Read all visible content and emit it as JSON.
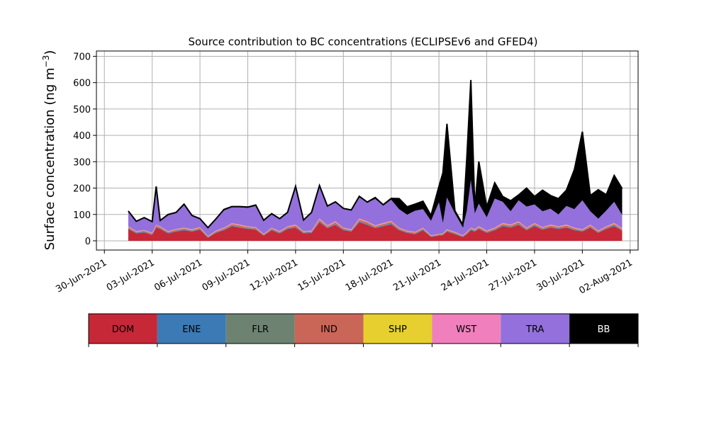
{
  "chart_data": {
    "type": "area",
    "stacked": true,
    "title": "Source contribution to BC concentrations (ECLIPSEv6 and GFED4)",
    "ylabel": "Surface concentration (ng m",
    "ylabel_superscript": "−3",
    "ylabel_close": ")",
    "xlabel": "",
    "ylim": [
      -35,
      720
    ],
    "xlim": [
      "2021-06-29T12:00",
      "2021-08-02T12:00"
    ],
    "grid": true,
    "x_ticks": [
      "30-Jun-2021",
      "03-Jul-2021",
      "06-Jul-2021",
      "09-Jul-2021",
      "12-Jul-2021",
      "15-Jul-2021",
      "18-Jul-2021",
      "21-Jul-2021",
      "24-Jul-2021",
      "27-Jul-2021",
      "30-Jul-2021",
      "02-Aug-2021"
    ],
    "y_ticks": [
      "0",
      "100",
      "200",
      "300",
      "400",
      "500",
      "600",
      "700"
    ],
    "legend_position": "bottom",
    "legend": [
      {
        "name": "DOM",
        "color": "#c62837",
        "text_color": "#000000"
      },
      {
        "name": "ENE",
        "color": "#3b7ab5",
        "text_color": "#000000"
      },
      {
        "name": "FLR",
        "color": "#6e8271",
        "text_color": "#000000"
      },
      {
        "name": "IND",
        "color": "#ca6657",
        "text_color": "#000000"
      },
      {
        "name": "SHP",
        "color": "#e6cf2f",
        "text_color": "#000000"
      },
      {
        "name": "WST",
        "color": "#f07fbd",
        "text_color": "#000000"
      },
      {
        "name": "TRA",
        "color": "#9370db",
        "text_color": "#000000"
      },
      {
        "name": "BB",
        "color": "#000000",
        "text_color": "#ffffff"
      }
    ],
    "x": [
      "2021-07-01T12:00",
      "2021-07-02T00:00",
      "2021-07-02T12:00",
      "2021-07-03T00:00",
      "2021-07-03T06:00",
      "2021-07-03T12:00",
      "2021-07-04T00:00",
      "2021-07-04T12:00",
      "2021-07-05T00:00",
      "2021-07-05T12:00",
      "2021-07-06T00:00",
      "2021-07-06T12:00",
      "2021-07-07T00:00",
      "2021-07-07T12:00",
      "2021-07-08T00:00",
      "2021-07-08T12:00",
      "2021-07-09T00:00",
      "2021-07-09T12:00",
      "2021-07-10T00:00",
      "2021-07-10T12:00",
      "2021-07-11T00:00",
      "2021-07-11T12:00",
      "2021-07-12T00:00",
      "2021-07-12T12:00",
      "2021-07-13T00:00",
      "2021-07-13T12:00",
      "2021-07-14T00:00",
      "2021-07-14T12:00",
      "2021-07-15T00:00",
      "2021-07-15T12:00",
      "2021-07-16T00:00",
      "2021-07-16T12:00",
      "2021-07-17T00:00",
      "2021-07-17T12:00",
      "2021-07-18T00:00",
      "2021-07-18T12:00",
      "2021-07-19T00:00",
      "2021-07-19T12:00",
      "2021-07-20T00:00",
      "2021-07-20T12:00",
      "2021-07-21T00:00",
      "2021-07-21T06:00",
      "2021-07-21T12:00",
      "2021-07-22T00:00",
      "2021-07-22T12:00",
      "2021-07-22T18:00",
      "2021-07-23T00:00",
      "2021-07-23T06:00",
      "2021-07-23T12:00",
      "2021-07-24T00:00",
      "2021-07-24T12:00",
      "2021-07-25T00:00",
      "2021-07-25T12:00",
      "2021-07-26T00:00",
      "2021-07-26T12:00",
      "2021-07-27T00:00",
      "2021-07-27T12:00",
      "2021-07-28T00:00",
      "2021-07-28T12:00",
      "2021-07-29T00:00",
      "2021-07-29T12:00",
      "2021-07-30T00:00",
      "2021-07-30T12:00",
      "2021-07-31T00:00",
      "2021-07-31T12:00",
      "2021-08-01T00:00",
      "2021-08-01T12:00"
    ],
    "series": [
      {
        "name": "DOM",
        "values": [
          45,
          28,
          32,
          22,
          50,
          45,
          28,
          35,
          40,
          35,
          42,
          12,
          30,
          40,
          55,
          50,
          45,
          42,
          20,
          40,
          28,
          45,
          50,
          28,
          30,
          70,
          48,
          60,
          40,
          35,
          70,
          60,
          48,
          55,
          62,
          40,
          30,
          25,
          40,
          15,
          20,
          22,
          35,
          25,
          15,
          25,
          40,
          35,
          45,
          30,
          40,
          55,
          50,
          60,
          40,
          55,
          42,
          50,
          45,
          50,
          40,
          35,
          50,
          30,
          45,
          55,
          38
        ]
      },
      {
        "name": "ENE",
        "values": [
          2,
          2,
          2,
          2,
          2,
          2,
          2,
          2,
          2,
          2,
          2,
          1,
          2,
          2,
          2,
          2,
          2,
          2,
          1,
          2,
          2,
          2,
          2,
          2,
          2,
          3,
          2,
          3,
          2,
          2,
          3,
          3,
          2,
          3,
          3,
          2,
          2,
          2,
          2,
          1,
          1,
          1,
          2,
          2,
          1,
          2,
          2,
          2,
          2,
          2,
          2,
          3,
          2,
          3,
          2,
          3,
          2,
          2,
          2,
          2,
          2,
          2,
          2,
          2,
          2,
          3,
          2
        ]
      },
      {
        "name": "FLR",
        "values": [
          1,
          1,
          1,
          1,
          1,
          1,
          1,
          1,
          1,
          1,
          1,
          1,
          1,
          1,
          1,
          1,
          1,
          1,
          1,
          1,
          1,
          1,
          1,
          1,
          1,
          1,
          1,
          1,
          1,
          1,
          1,
          1,
          1,
          1,
          1,
          1,
          1,
          1,
          1,
          1,
          1,
          1,
          1,
          1,
          1,
          1,
          1,
          1,
          1,
          1,
          1,
          1,
          1,
          1,
          1,
          1,
          1,
          1,
          1,
          1,
          1,
          1,
          1,
          1,
          1,
          1,
          1
        ]
      },
      {
        "name": "IND",
        "values": [
          4,
          3,
          3,
          3,
          5,
          4,
          3,
          4,
          4,
          3,
          4,
          2,
          3,
          4,
          5,
          5,
          4,
          4,
          2,
          4,
          3,
          4,
          5,
          3,
          3,
          6,
          4,
          6,
          4,
          3,
          6,
          6,
          4,
          5,
          6,
          4,
          3,
          3,
          4,
          2,
          2,
          2,
          3,
          3,
          2,
          3,
          4,
          3,
          4,
          3,
          4,
          5,
          5,
          6,
          4,
          5,
          4,
          5,
          4,
          5,
          4,
          3,
          5,
          3,
          4,
          5,
          4
        ]
      },
      {
        "name": "SHP",
        "values": [
          1,
          1,
          1,
          1,
          1,
          1,
          1,
          1,
          1,
          1,
          1,
          1,
          1,
          1,
          1,
          1,
          1,
          1,
          1,
          1,
          1,
          1,
          1,
          1,
          1,
          1,
          1,
          1,
          1,
          1,
          1,
          1,
          1,
          1,
          1,
          1,
          1,
          1,
          1,
          1,
          1,
          1,
          1,
          1,
          1,
          1,
          1,
          1,
          1,
          1,
          1,
          1,
          1,
          1,
          1,
          1,
          1,
          1,
          1,
          1,
          1,
          1,
          1,
          1,
          1,
          1,
          1
        ]
      },
      {
        "name": "WST",
        "values": [
          2,
          2,
          2,
          2,
          2,
          2,
          2,
          2,
          2,
          2,
          2,
          1,
          2,
          2,
          3,
          3,
          2,
          2,
          1,
          2,
          2,
          2,
          3,
          2,
          2,
          4,
          3,
          4,
          2,
          2,
          4,
          3,
          3,
          3,
          3,
          2,
          2,
          2,
          2,
          1,
          1,
          1,
          2,
          2,
          1,
          2,
          2,
          2,
          3,
          2,
          2,
          3,
          3,
          3,
          2,
          3,
          2,
          3,
          2,
          3,
          2,
          2,
          3,
          2,
          2,
          3,
          2
        ]
      },
      {
        "name": "TRA",
        "values": [
          55,
          35,
          45,
          40,
          140,
          20,
          60,
          60,
          85,
          50,
          30,
          30,
          42,
          65,
          60,
          65,
          70,
          80,
          50,
          50,
          45,
          50,
          140,
          40,
          65,
          120,
          70,
          70,
          70,
          70,
          80,
          70,
          100,
          65,
          80,
          70,
          60,
          80,
          70,
          55,
          120,
          40,
          120,
          70,
          30,
          80,
          180,
          60,
          85,
          50,
          110,
          80,
          50,
          80,
          80,
          70,
          60,
          60,
          45,
          70,
          70,
          110,
          50,
          45,
          60,
          80,
          50
        ]
      },
      {
        "name": "BB",
        "values": [
          3,
          2,
          2,
          2,
          5,
          2,
          3,
          3,
          4,
          2,
          2,
          2,
          2,
          4,
          3,
          3,
          3,
          4,
          2,
          3,
          2,
          3,
          5,
          2,
          4,
          5,
          3,
          3,
          3,
          3,
          4,
          3,
          5,
          4,
          5,
          40,
          30,
          25,
          30,
          20,
          60,
          190,
          280,
          10,
          10,
          200,
          380,
          20,
          160,
          40,
          60,
          20,
          40,
          20,
          70,
          30,
          80,
          50,
          60,
          60,
          150,
          260,
          60,
          110,
          60,
          100,
          100
        ]
      }
    ]
  }
}
